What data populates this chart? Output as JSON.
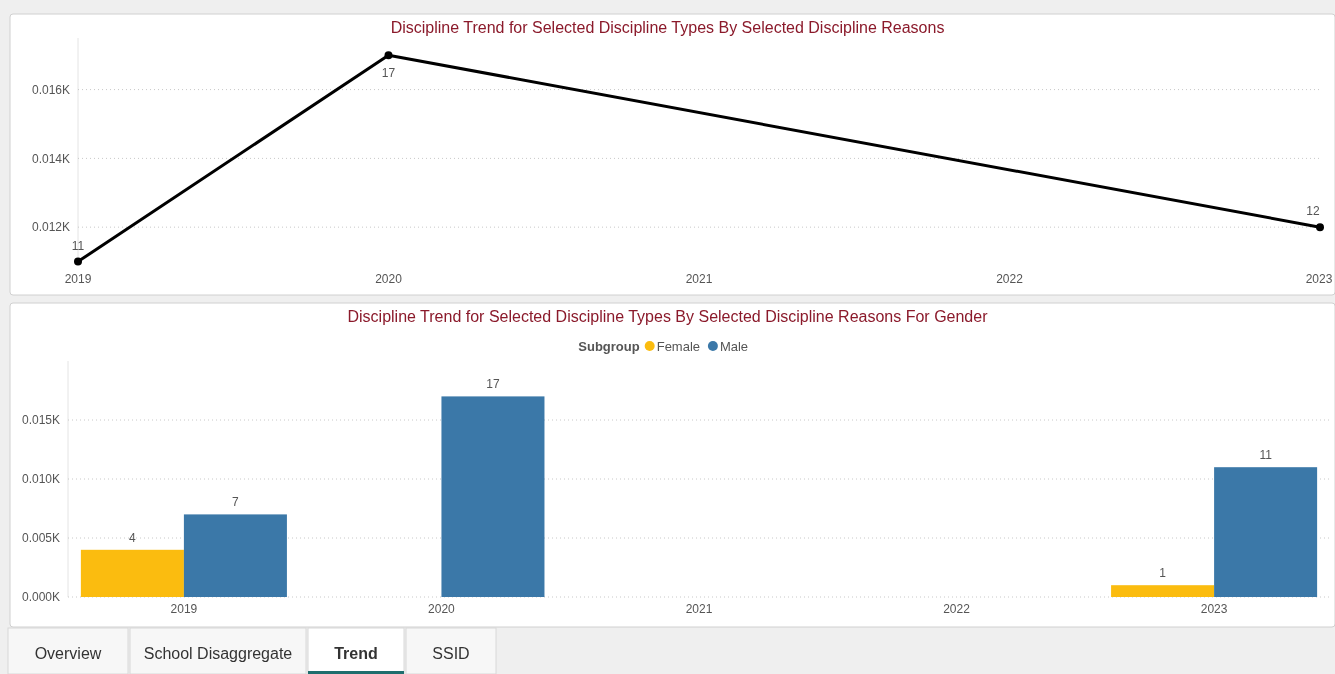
{
  "chart_data": [
    {
      "type": "line",
      "title": "Discipline Trend for Selected Discipline Types By Selected Discipline Reasons",
      "x": [
        2019,
        2020,
        2023
      ],
      "xlim": [
        2019,
        2023
      ],
      "xticks": [
        2019,
        2020,
        2021,
        2022,
        2023
      ],
      "series": [
        {
          "color": "#000000",
          "values": [
            11,
            17,
            12
          ]
        }
      ],
      "ylim": [
        10.9,
        17.5
      ],
      "yticks": [
        {
          "value": 12,
          "label": "0.012K"
        },
        {
          "value": 14,
          "label": "0.014K"
        },
        {
          "value": 16,
          "label": "0.016K"
        }
      ],
      "grid": "y",
      "marker": "circle",
      "line_style": "solid",
      "data_labels": true,
      "legend": false
    },
    {
      "type": "bar",
      "title": "Discipline Trend for Selected Discipline Types By Selected Discipline Reasons For Gender",
      "categories": [
        "2019",
        "2020",
        "2021",
        "2022",
        "2023"
      ],
      "series": [
        {
          "name": "Female",
          "color": "#fbbc0f",
          "values": [
            4,
            null,
            null,
            null,
            1
          ]
        },
        {
          "name": "Male",
          "color": "#3b78a8",
          "values": [
            7,
            17,
            null,
            null,
            11
          ]
        }
      ],
      "legend_title": "Subgroup",
      "legend": "top",
      "ylim": [
        0,
        20
      ],
      "yticks": [
        {
          "value": 0,
          "label": "0.000K"
        },
        {
          "value": 5,
          "label": "0.005K"
        },
        {
          "value": 10,
          "label": "0.010K"
        },
        {
          "value": 15,
          "label": "0.015K"
        }
      ],
      "grid": "y",
      "data_labels": true
    },
    {
      "type": "other",
      "annotations": [
        "Overview",
        "School Disaggregate",
        "Trend",
        "SSID"
      ]
    }
  ]
}
